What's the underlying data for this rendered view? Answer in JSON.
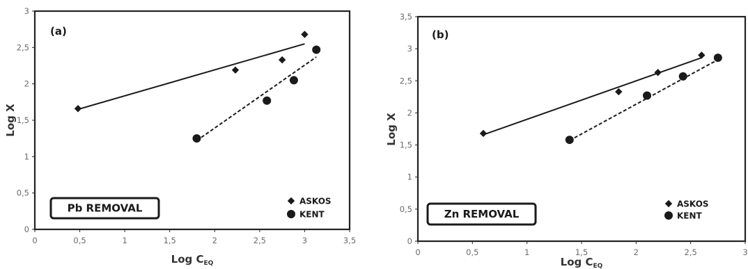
{
  "colors": {
    "marker": "#1a1a1a",
    "line": "#1a1a1a",
    "axis": "#222222",
    "tick_text": "#6b6b6b"
  },
  "chart_data": [
    {
      "type": "scatter",
      "panel_label": "(a)",
      "box_label": "Pb REMOVAL",
      "xlabel": "Log C",
      "xlabel_sub": "EQ",
      "ylabel": "Log X",
      "xlim": [
        0,
        3.5
      ],
      "ylim": [
        0,
        3
      ],
      "xticks": [
        "0",
        "0,5",
        "1",
        "1,5",
        "2",
        "2,5",
        "3",
        "3,5"
      ],
      "yticks": [
        "0",
        "0,5",
        "1",
        "1,5",
        "2",
        "2,5",
        "3"
      ],
      "grid": false,
      "legend_position": "bottom-right",
      "series": [
        {
          "name": "ASKOS",
          "marker": "diamond",
          "trendline": "solid",
          "x": [
            0.48,
            2.23,
            2.75,
            3.0
          ],
          "y": [
            1.66,
            2.19,
            2.33,
            2.68
          ],
          "trend": [
            [
              0.48,
              1.65
            ],
            [
              3.0,
              2.55
            ]
          ]
        },
        {
          "name": "KENT",
          "marker": "circle",
          "trendline": "dashed",
          "x": [
            1.8,
            2.58,
            2.88,
            3.13
          ],
          "y": [
            1.25,
            1.77,
            2.05,
            2.47
          ],
          "trend": [
            [
              1.8,
              1.22
            ],
            [
              3.13,
              2.37
            ]
          ]
        }
      ]
    },
    {
      "type": "scatter",
      "panel_label": "(b)",
      "box_label": "Zn REMOVAL",
      "xlabel": "Log C",
      "xlabel_sub": "EQ",
      "ylabel": "Log X",
      "xlim": [
        0,
        3
      ],
      "ylim": [
        0,
        3.5
      ],
      "xticks": [
        "0",
        "0,5",
        "1",
        "1,5",
        "2",
        "2,5",
        "3"
      ],
      "yticks": [
        "0",
        "0,5",
        "1",
        "1,5",
        "2",
        "2,5",
        "3",
        "3,5"
      ],
      "grid": false,
      "legend_position": "bottom-right",
      "series": [
        {
          "name": "ASKOS",
          "marker": "diamond",
          "trendline": "solid",
          "x": [
            0.6,
            1.84,
            2.2,
            2.6
          ],
          "y": [
            1.68,
            2.33,
            2.63,
            2.9
          ],
          "trend": [
            [
              0.6,
              1.66
            ],
            [
              2.6,
              2.86
            ]
          ]
        },
        {
          "name": "KENT",
          "marker": "circle",
          "trendline": "dashed",
          "x": [
            1.39,
            2.1,
            2.43,
            2.75
          ],
          "y": [
            1.58,
            2.27,
            2.57,
            2.86
          ],
          "trend": [
            [
              1.39,
              1.57
            ],
            [
              2.75,
              2.83
            ]
          ]
        }
      ]
    }
  ]
}
